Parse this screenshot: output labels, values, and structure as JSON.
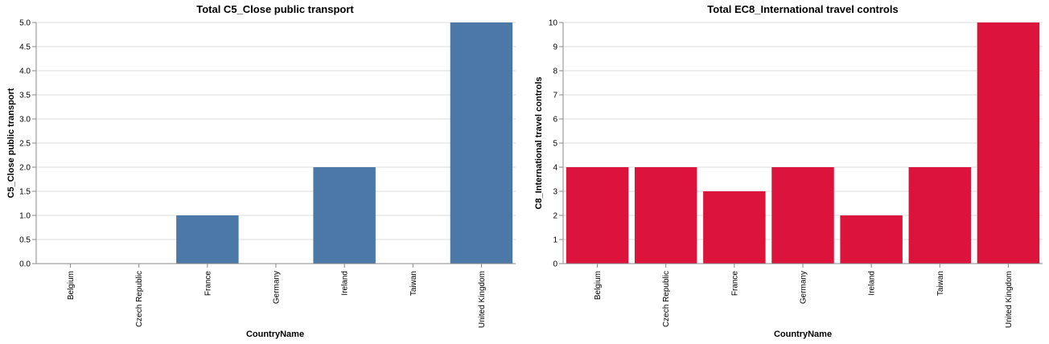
{
  "chart_data": [
    {
      "type": "bar",
      "title": "Total C5_Close public transport",
      "xlabel": "CountryName",
      "ylabel": "C5_Close public transport",
      "categories": [
        "Belgium",
        "Czech Republic",
        "France",
        "Germany",
        "Ireland",
        "Taiwan",
        "United Kingdom"
      ],
      "values": [
        0,
        0,
        1,
        0,
        2,
        0,
        5
      ],
      "ylim": [
        0,
        5
      ],
      "yticks": [
        "0.0",
        "0.5",
        "1.0",
        "1.5",
        "2.0",
        "2.5",
        "3.0",
        "3.5",
        "4.0",
        "4.5",
        "5.0"
      ],
      "color": "#4c78a8",
      "grid": true
    },
    {
      "type": "bar",
      "title": "Total EC8_International travel controls",
      "xlabel": "CountryName",
      "ylabel": "C8_International travel controls",
      "categories": [
        "Belgium",
        "Czech Republic",
        "France",
        "Germany",
        "Ireland",
        "Taiwan",
        "United Kingdom"
      ],
      "values": [
        4,
        4,
        3,
        4,
        2,
        4,
        10
      ],
      "ylim": [
        0,
        10
      ],
      "yticks": [
        "0",
        "1",
        "2",
        "3",
        "4",
        "5",
        "6",
        "7",
        "8",
        "9",
        "10"
      ],
      "color": "#dc143c",
      "grid": true
    }
  ]
}
